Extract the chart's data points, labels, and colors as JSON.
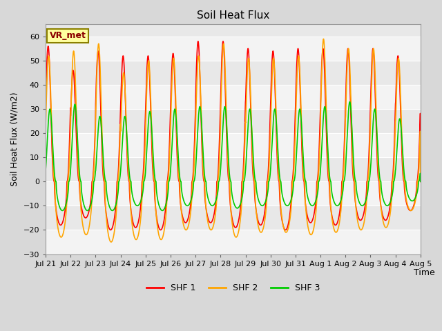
{
  "title": "Soil Heat Flux",
  "ylabel": "Soil Heat Flux (W/m2)",
  "xlabel": "Time",
  "ylim": [
    -30,
    65
  ],
  "yticks": [
    -30,
    -20,
    -10,
    0,
    10,
    20,
    30,
    40,
    50,
    60
  ],
  "xtick_labels": [
    "Jul 21",
    "Jul 22",
    "Jul 23",
    "Jul 24",
    "Jul 25",
    "Jul 26",
    "Jul 27",
    "Jul 28",
    "Jul 29",
    "Jul 30",
    "Jul 31",
    "Aug 1",
    "Aug 2",
    "Aug 3",
    "Aug 4",
    "Aug 5"
  ],
  "annotation_text": "VR_met",
  "annotation_box_color": "#FFFFA0",
  "annotation_border_color": "#8B8000",
  "line_colors": {
    "SHF 1": "#FF0000",
    "SHF 2": "#FFA500",
    "SHF 3": "#00CC00"
  },
  "bg_color": "#D8D8D8",
  "plot_bg_color": "#E8E8E8",
  "n_days": 15,
  "points_per_day": 144,
  "shf1_peaks": [
    56,
    46,
    54,
    52,
    52,
    53,
    58,
    58,
    55,
    54,
    55,
    55,
    55,
    55,
    52
  ],
  "shf1_troughs": [
    -18,
    -15,
    -20,
    -19,
    -20,
    -17,
    -17,
    -19,
    -18,
    -20,
    -17,
    -18,
    -16,
    -16,
    -12
  ],
  "shf2_peaks": [
    52,
    54,
    57,
    45,
    50,
    51,
    52,
    57,
    51,
    51,
    52,
    59,
    55,
    55,
    51
  ],
  "shf2_troughs": [
    -23,
    -22,
    -25,
    -24,
    -24,
    -20,
    -20,
    -23,
    -21,
    -21,
    -22,
    -21,
    -20,
    -19,
    -12
  ],
  "shf3_peaks": [
    30,
    32,
    27,
    27,
    29,
    30,
    31,
    31,
    30,
    30,
    30,
    31,
    33,
    30,
    26
  ],
  "shf3_troughs": [
    -12,
    -12,
    -12,
    -10,
    -12,
    -10,
    -10,
    -11,
    -10,
    -10,
    -10,
    -10,
    -10,
    -10,
    -8
  ],
  "shf1_phase": 0.35,
  "shf2_phase": 0.37,
  "shf3_phase": 0.42
}
